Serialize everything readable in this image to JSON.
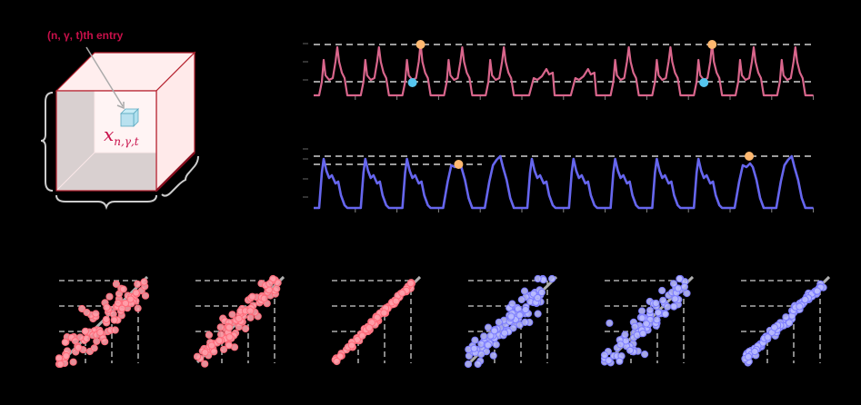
{
  "tensor": {
    "entry_label": "(n, γ, t)th entry",
    "variable_symbol": "x",
    "variable_subscript": "n,γ,t",
    "colors": {
      "cube_edge": "#b5202e",
      "cube_fill": "#fff0f0",
      "label": "#c8104a",
      "small_cube": "#7cc4d8",
      "brace": "#cccccc",
      "arrow": "#aaaaaa"
    }
  },
  "colors": {
    "background": "#000000",
    "pink_series": "#d9668c",
    "blue_series": "#6666ee",
    "orange_marker": "#ffb870",
    "cyan_marker": "#55c5ee",
    "dashed_line": "#d0d0d0",
    "scatter_pink_fill": "#ff9da8",
    "scatter_pink_edge": "#ff6b7a",
    "scatter_blue_fill": "#b8baff",
    "scatter_blue_edge": "#7d7dff",
    "diagonal": "#b0b0b0"
  },
  "chart_data": [
    {
      "id": "top-timeseries",
      "type": "line",
      "title": "",
      "xlabel": "",
      "ylabel": "",
      "x_ticks_count": 12,
      "y_ticks_count": 3,
      "series": [
        {
          "name": "pink-series",
          "color": "#d9668c",
          "pattern": "bimodal daily peaks, 13 cycles"
        }
      ],
      "reference_lines": [
        {
          "type": "dashed",
          "level": "max"
        },
        {
          "type": "dashed",
          "level": "mid"
        }
      ],
      "markers": [
        {
          "color": "orange",
          "position": "peak",
          "cycle": 3
        },
        {
          "color": "cyan",
          "position": "mid",
          "cycle": 3
        },
        {
          "color": "orange",
          "position": "peak",
          "cycle": 10
        },
        {
          "color": "cyan",
          "position": "mid",
          "cycle": 10
        }
      ],
      "grid": false
    },
    {
      "id": "bottom-timeseries",
      "type": "line",
      "title": "",
      "xlabel": "",
      "ylabel": "",
      "x_ticks_count": 12,
      "y_ticks_count": 4,
      "series": [
        {
          "name": "blue-series",
          "color": "#6666ee",
          "pattern": "single daily plateau peaks, 13 cycles"
        }
      ],
      "reference_lines": [
        {
          "type": "dashed",
          "level": "max"
        },
        {
          "type": "dashed",
          "level": "second"
        }
      ],
      "markers": [
        {
          "color": "orange",
          "position": "peak",
          "cycle": 4
        },
        {
          "color": "orange",
          "position": "peak",
          "cycle": 11
        }
      ],
      "grid": false
    },
    {
      "id": "scatter-1",
      "type": "scatter",
      "color": "pink",
      "spread": "high",
      "diagonal": true,
      "grid": "dashed 3x3"
    },
    {
      "id": "scatter-2",
      "type": "scatter",
      "color": "pink",
      "spread": "medium",
      "diagonal": true,
      "grid": "dashed 3x3"
    },
    {
      "id": "scatter-3",
      "type": "scatter",
      "color": "pink",
      "spread": "low",
      "diagonal": true,
      "grid": "dashed 3x3"
    },
    {
      "id": "scatter-4",
      "type": "scatter",
      "color": "blue",
      "spread": "high",
      "diagonal": true,
      "grid": "dashed 3x3"
    },
    {
      "id": "scatter-5",
      "type": "scatter",
      "color": "blue",
      "spread": "medium-high",
      "diagonal": true,
      "grid": "dashed 3x3"
    },
    {
      "id": "scatter-6",
      "type": "scatter",
      "color": "blue",
      "spread": "low",
      "diagonal": true,
      "grid": "dashed 3x3"
    }
  ]
}
